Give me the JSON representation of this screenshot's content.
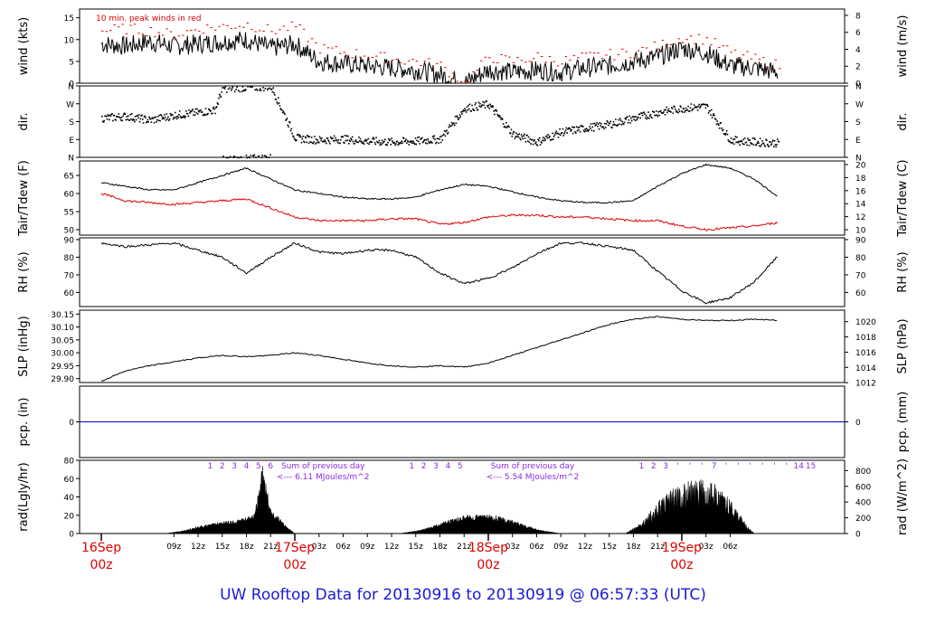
{
  "page": {
    "footer_title": "UW Rooftop Data for 20130916  to  20130919 @ 06:57:33  (UTC)"
  },
  "colors": {
    "axis": "#000000",
    "temp": "#000000",
    "dewpoint": "#e00000",
    "peak_wind": "#e00000",
    "precip": "#0000cc",
    "annotation": "#8a2be2",
    "date_label": "#e00000",
    "title": "#1a1ad6"
  },
  "chart_data": [
    {
      "type": "line",
      "id": "wind",
      "ylabel_left": "wind (kts)",
      "ylabel_right": "wind (m/s)",
      "ylim": [
        0,
        17
      ],
      "yticks_left": [
        0,
        5,
        10,
        15
      ],
      "yticks_right": [
        0,
        2,
        4,
        6,
        8
      ],
      "annotation": "10 min. peak winds in red",
      "x_hours": [
        0,
        3,
        6,
        9,
        12,
        15,
        18,
        21,
        24,
        27,
        30,
        33,
        36,
        39,
        42,
        45,
        48,
        51,
        54,
        57,
        60,
        63,
        66,
        69,
        72,
        75,
        78,
        81,
        84
      ],
      "series": [
        {
          "name": "wind",
          "values": [
            9,
            8.5,
            9.5,
            8.5,
            9,
            9.5,
            10,
            8,
            9,
            5,
            4.5,
            4,
            3.5,
            3,
            2,
            0,
            3,
            2.5,
            3,
            2.5,
            3.5,
            4,
            5,
            6,
            8,
            7,
            4,
            3.5,
            2.5
          ]
        },
        {
          "name": "peak",
          "values": [
            12,
            12.5,
            12,
            11,
            12.5,
            13,
            13.5,
            12,
            13,
            8,
            7,
            6.5,
            5.5,
            5,
            4,
            0,
            6,
            5,
            6,
            5,
            6,
            6.5,
            7,
            8.5,
            10.5,
            10,
            7,
            5.5,
            4
          ]
        }
      ]
    },
    {
      "type": "scatter",
      "id": "dir",
      "ylabel_left": "dir.",
      "ylabel_right": "dir.",
      "ylim": [
        0,
        360
      ],
      "yticks": [
        "N",
        "E",
        "S",
        "W",
        "N"
      ],
      "x_hours": [
        0,
        3,
        6,
        9,
        12,
        14,
        15,
        18,
        21,
        24,
        27,
        30,
        33,
        36,
        39,
        42,
        45,
        48,
        51,
        54,
        57,
        60,
        63,
        66,
        69,
        72,
        75,
        78,
        81,
        84
      ],
      "series": [
        {
          "name": "dir",
          "values": [
            200,
            210,
            190,
            215,
            230,
            240,
            350,
            355,
            360,
            100,
            90,
            95,
            85,
            80,
            85,
            95,
            250,
            270,
            120,
            80,
            130,
            150,
            170,
            200,
            230,
            250,
            260,
            90,
            80,
            75
          ]
        }
      ]
    },
    {
      "type": "line",
      "id": "temp",
      "ylabel_left": "Tair/Tdew (F)",
      "ylabel_right": "Tair/Tdew (C)",
      "ylim": [
        48.5,
        69
      ],
      "yticks_left": [
        50,
        55,
        60,
        65
      ],
      "yticks_right": [
        10,
        12,
        14,
        16,
        18,
        20
      ],
      "x_hours": [
        0,
        3,
        6,
        9,
        12,
        15,
        18,
        21,
        24,
        27,
        30,
        33,
        36,
        39,
        42,
        45,
        48,
        51,
        54,
        57,
        60,
        63,
        66,
        69,
        72,
        75,
        78,
        81,
        84
      ],
      "series": [
        {
          "name": "Tair",
          "values": [
            63,
            62,
            61,
            61,
            63,
            65,
            67,
            64,
            61,
            60,
            59,
            58.5,
            58.5,
            59,
            61,
            62.5,
            62,
            60.5,
            59,
            58,
            57.5,
            57.5,
            58,
            62,
            65.5,
            68,
            67,
            64,
            59
          ]
        },
        {
          "name": "Tdew",
          "values": [
            60,
            58,
            57.5,
            57,
            57.5,
            58,
            58.5,
            56,
            53.5,
            52.5,
            52.5,
            52.5,
            53,
            53,
            51.5,
            52,
            53.5,
            54,
            54,
            53.5,
            53.5,
            53,
            52.5,
            52.5,
            51,
            50,
            50.5,
            51,
            52
          ]
        }
      ]
    },
    {
      "type": "line",
      "id": "rh",
      "ylabel_left": "RH (%)",
      "ylabel_right": "RH (%)",
      "ylim": [
        52,
        91
      ],
      "yticks": [
        60,
        70,
        80,
        90
      ],
      "x_hours": [
        0,
        3,
        6,
        9,
        12,
        15,
        18,
        21,
        24,
        27,
        30,
        33,
        36,
        39,
        42,
        45,
        48,
        51,
        54,
        57,
        60,
        63,
        66,
        69,
        72,
        75,
        78,
        81,
        84
      ],
      "series": [
        {
          "name": "RH",
          "values": [
            88,
            86,
            87,
            88,
            84,
            80,
            71,
            80,
            88,
            83,
            82,
            84,
            84,
            80,
            71,
            65,
            68,
            74,
            82,
            88,
            88,
            86,
            84,
            72,
            61,
            54,
            57,
            66,
            81
          ]
        }
      ]
    },
    {
      "type": "line",
      "id": "slp",
      "ylabel_left": "SLP (inHg)",
      "ylabel_right": "SLP (hPa)",
      "ylim": [
        29.885,
        30.165
      ],
      "yticks_left": [
        29.9,
        29.95,
        30.0,
        30.05,
        30.1,
        30.15
      ],
      "yticks_left_labels": [
        "29.90",
        "29.95",
        "30.00",
        "30.05",
        "30.10",
        "30.15"
      ],
      "yticks_right": [
        1012,
        1014,
        1016,
        1018,
        1020
      ],
      "x_hours": [
        0,
        3,
        6,
        9,
        12,
        15,
        18,
        21,
        24,
        27,
        30,
        33,
        36,
        39,
        42,
        45,
        48,
        51,
        54,
        57,
        60,
        63,
        66,
        69,
        72,
        75,
        78,
        81,
        84
      ],
      "series": [
        {
          "name": "SLP",
          "values": [
            29.89,
            29.93,
            29.95,
            29.965,
            29.98,
            29.99,
            29.985,
            29.99,
            30.0,
            29.99,
            29.975,
            29.96,
            29.95,
            29.945,
            29.95,
            29.945,
            29.96,
            29.99,
            30.02,
            30.05,
            30.08,
            30.11,
            30.13,
            30.14,
            30.13,
            30.125,
            30.125,
            30.13,
            30.125
          ]
        }
      ]
    },
    {
      "type": "line",
      "id": "pcp",
      "ylabel_left": "pcp. (in)",
      "ylabel_right": "pcp. (mm)",
      "ylim": [
        -0.5,
        0.5
      ],
      "yticks_left": [
        0
      ],
      "yticks_right": [
        0
      ],
      "series": [
        {
          "name": "pcp",
          "values": [
            0,
            0
          ]
        }
      ]
    },
    {
      "type": "area",
      "id": "rad",
      "ylabel_left": "rad(Lgly/hr)",
      "ylabel_right": "rad (W/m^2)",
      "ylim": [
        0,
        80
      ],
      "yticks_left": [
        0,
        20,
        40,
        60,
        80
      ],
      "yticks_right": [
        0,
        200,
        400,
        600,
        800
      ],
      "x_hours": [
        8,
        10,
        12,
        14,
        16,
        18,
        19,
        20,
        21,
        22,
        23,
        24,
        37,
        39,
        41,
        43,
        45,
        47,
        49,
        51,
        53,
        55,
        57,
        65,
        67,
        69,
        71,
        73,
        74,
        75,
        76,
        77,
        78,
        79,
        80,
        81
      ],
      "series": [
        {
          "name": "rad",
          "values": [
            0,
            3,
            8,
            12,
            14,
            18,
            22,
            75,
            28,
            18,
            8,
            0,
            0,
            3,
            8,
            15,
            20,
            22,
            20,
            15,
            8,
            3,
            0,
            0,
            12,
            35,
            50,
            58,
            60,
            58,
            55,
            48,
            38,
            25,
            10,
            0
          ]
        }
      ],
      "hour_marks_day1": [
        "1",
        "2",
        "3",
        "4",
        "5",
        "6"
      ],
      "hour_marks_day2": [
        "1",
        "2",
        "3",
        "4",
        "5"
      ],
      "hour_marks_day3": [
        "1",
        "2",
        "3",
        "4",
        "5",
        "6",
        "7",
        "8",
        "9",
        "10",
        "11",
        "12",
        "13",
        "14",
        "15"
      ],
      "sum_label": "Sum of previous day",
      "sum_day1": "<--- 6.11 MJoules/m^2",
      "sum_day2": "<--- 5.54 MJoules/m^2"
    }
  ],
  "x_axis": {
    "start_hour_utc": 6,
    "end_hour_utc": 91,
    "tick_labels": [
      "09z",
      "12z",
      "15z",
      "18z",
      "21z",
      "03z",
      "06z",
      "09z",
      "12z",
      "15z",
      "18z",
      "21z",
      "03z",
      "06z",
      "09z",
      "12z",
      "15z",
      "18z",
      "21z",
      "03z",
      "06z"
    ],
    "tick_hours": [
      9,
      12,
      15,
      18,
      21,
      27,
      30,
      33,
      36,
      39,
      42,
      45,
      51,
      54,
      57,
      60,
      63,
      66,
      69,
      75,
      78
    ],
    "day_labels": [
      {
        "hour": 0,
        "line1": "16Sep",
        "line2": "00z"
      },
      {
        "hour": 24,
        "line1": "17Sep",
        "line2": "00z"
      },
      {
        "hour": 48,
        "line1": "18Sep",
        "line2": "00z"
      },
      {
        "hour": 72,
        "line1": "19Sep",
        "line2": "00z"
      }
    ]
  }
}
